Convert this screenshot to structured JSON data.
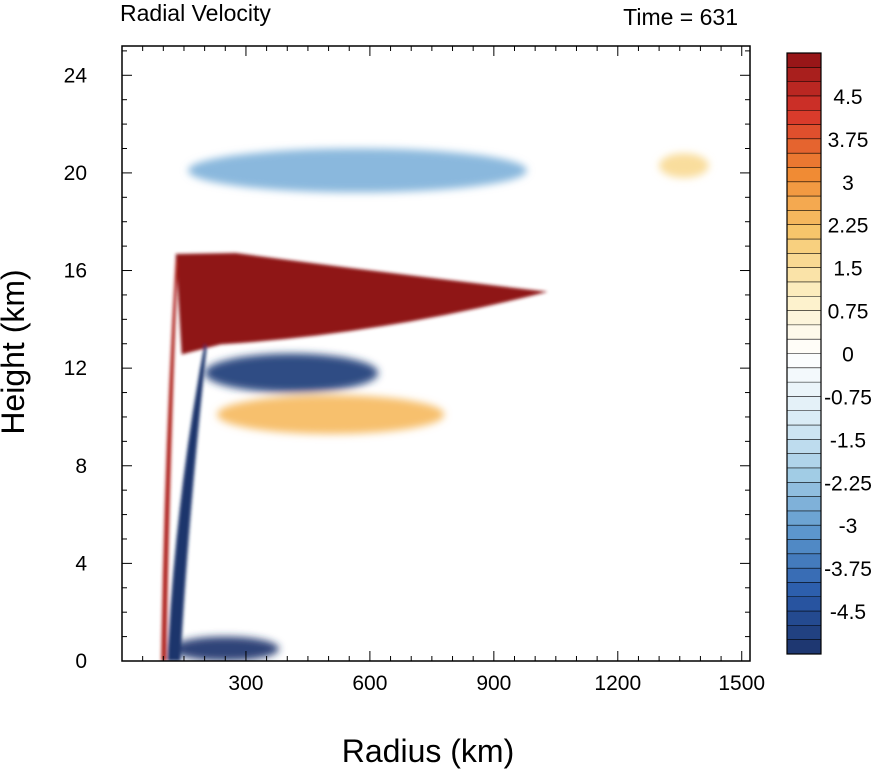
{
  "chart_data": {
    "type": "heatmap",
    "title": "Radial Velocity",
    "subtitle": "Time = 631",
    "xlabel": "Radius (km)",
    "ylabel": "Height (km)",
    "xlim": [
      0,
      1520
    ],
    "ylim": [
      0,
      25.2
    ],
    "x_ticks": [
      300,
      600,
      900,
      1200,
      1500
    ],
    "y_ticks": [
      0,
      4,
      8,
      12,
      16,
      20,
      24
    ],
    "colorbar": {
      "range": [
        -5.25,
        5.25
      ],
      "step": 0.25,
      "tick_labels": [
        "-4.5",
        "-3.75",
        "-3",
        "-2.25",
        "-1.5",
        "-0.75",
        "0",
        "0.75",
        "1.5",
        "2.25",
        "3",
        "3.75",
        "4.5"
      ],
      "tick_values": [
        -4.5,
        -3.75,
        -3,
        -2.25,
        -1.5,
        -0.75,
        0,
        0.75,
        1.5,
        2.25,
        3,
        3.75,
        4.5
      ],
      "palette": [
        "#1c3269",
        "#2a5bab",
        "#5a95cc",
        "#a3cde6",
        "#deeef7",
        "#ffffff",
        "#fcefc3",
        "#f7c76c",
        "#f08a33",
        "#d7352a",
        "#8f1216"
      ]
    },
    "features": [
      {
        "name": "upper-level outflow jet",
        "r_range": [
          130,
          1030
        ],
        "z_range": [
          13.3,
          16.8
        ],
        "peak": 5.5
      },
      {
        "name": "inflow below outflow",
        "r_range": [
          200,
          620
        ],
        "z_range": [
          11.0,
          12.6
        ],
        "peak": -5.0
      },
      {
        "name": "eyewall inflow column",
        "r_range": [
          110,
          200
        ],
        "z_range": [
          0,
          13
        ],
        "peak": -5.2
      },
      {
        "name": "eyewall outflow sliver",
        "r_range": [
          95,
          130
        ],
        "z_range": [
          0,
          16.5
        ],
        "peak": 4.8
      },
      {
        "name": "boundary-layer inflow",
        "r_range": [
          120,
          380
        ],
        "z_range": [
          0,
          1.0
        ],
        "peak": -5.2
      },
      {
        "name": "upper inflow layer",
        "r_range": [
          160,
          980
        ],
        "z_range": [
          19.2,
          21.0
        ],
        "peak": -2.6
      },
      {
        "name": "mid-level outflow",
        "r_range": [
          230,
          780
        ],
        "z_range": [
          9.3,
          10.9
        ],
        "peak": 2.3
      },
      {
        "name": "outer outflow patch",
        "r_range": [
          1300,
          1420
        ],
        "z_range": [
          19.8,
          20.8
        ],
        "peak": 1.6
      }
    ]
  }
}
